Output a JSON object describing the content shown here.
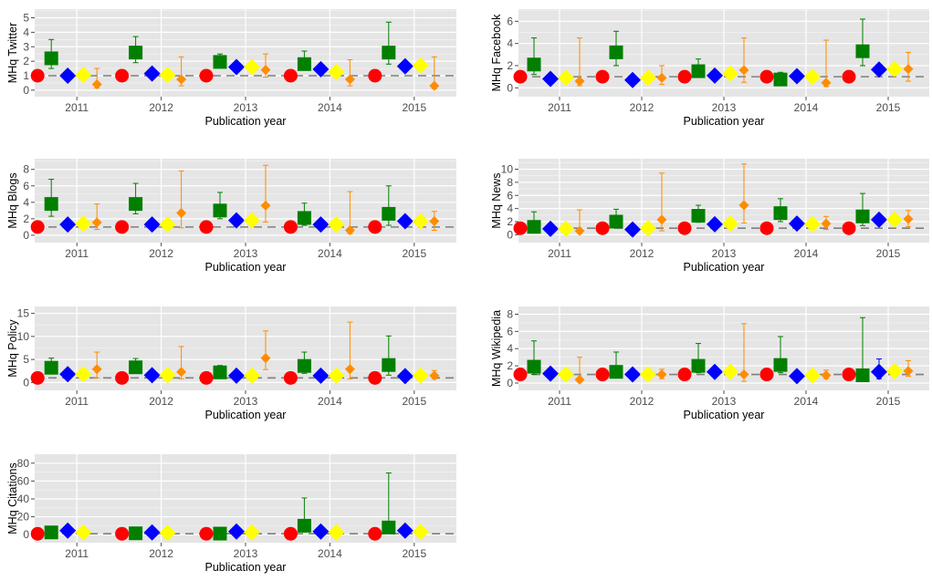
{
  "colors": {
    "panel_bg": "#e5e5e5",
    "grid": "#ffffff",
    "reference_line": "#7f7f7f",
    "tick_text": "#4d4d4d",
    "series": [
      "#ff0000",
      "#007f00",
      "#0000ff",
      "#ffff00",
      "#ff8c00"
    ]
  },
  "chart_data": [
    {
      "type": "scatter",
      "ylabel": "MHq Twitter",
      "xlabel": "Publication year",
      "categories": [
        "2011",
        "2012",
        "2013",
        "2014",
        "2015"
      ],
      "ylim": [
        -0.45,
        5.6
      ],
      "yticks": [
        "0",
        "1",
        "2",
        "3",
        "4",
        "5"
      ],
      "reference_line": 1,
      "series": [
        {
          "marker": "circle",
          "color": "#ff0000",
          "values": [
            1,
            1,
            1,
            1,
            1
          ]
        },
        {
          "marker": "square",
          "color": "#007f00",
          "values": [
            2.2,
            2.6,
            1.95,
            1.8,
            2.6
          ],
          "ci_low": [
            1.5,
            1.9,
            1.6,
            1.4,
            1.8
          ],
          "ci_high": [
            3.5,
            3.7,
            2.5,
            2.7,
            4.7
          ]
        },
        {
          "marker": "diamond",
          "color": "#0000ff",
          "values": [
            1,
            1.15,
            1.6,
            1.45,
            1.65
          ]
        },
        {
          "marker": "diamond",
          "color": "#ffff00",
          "values": [
            1.05,
            1.05,
            1.6,
            1.25,
            1.7
          ]
        },
        {
          "marker": "diamond",
          "color": "#ff8c00",
          "values": [
            0.4,
            0.75,
            1.4,
            0.75,
            0.3
          ],
          "ci_low": [
            0.15,
            0.3,
            0.9,
            0.3,
            0.1
          ],
          "ci_high": [
            1.5,
            2.3,
            2.5,
            2.1,
            2.3
          ]
        }
      ]
    },
    {
      "type": "scatter",
      "ylabel": "MHq Facebook",
      "xlabel": "Publication year",
      "categories": [
        "2011",
        "2012",
        "2013",
        "2014",
        "2015"
      ],
      "ylim": [
        -0.8,
        7.1
      ],
      "yticks": [
        "0",
        "2",
        "4",
        "6"
      ],
      "reference_line": 1,
      "series": [
        {
          "marker": "circle",
          "color": "#ff0000",
          "values": [
            1,
            1,
            1,
            1,
            1
          ]
        },
        {
          "marker": "square",
          "color": "#007f00",
          "values": [
            2.1,
            3.2,
            1.5,
            0.75,
            3.3
          ],
          "ci_low": [
            1.2,
            2.0,
            1.0,
            0.4,
            2.0
          ],
          "ci_high": [
            4.5,
            5.1,
            2.6,
            1.4,
            6.2
          ]
        },
        {
          "marker": "diamond",
          "color": "#0000ff",
          "values": [
            0.8,
            0.7,
            1.1,
            1.05,
            1.65
          ]
        },
        {
          "marker": "diamond",
          "color": "#ffff00",
          "values": [
            0.9,
            0.9,
            1.3,
            1.0,
            1.7
          ]
        },
        {
          "marker": "diamond",
          "color": "#ff8c00",
          "values": [
            0.6,
            0.9,
            1.6,
            0.45,
            1.7
          ],
          "ci_low": [
            0.2,
            0.3,
            0.5,
            0.1,
            0.6
          ],
          "ci_high": [
            4.5,
            2.0,
            4.5,
            4.3,
            3.2
          ]
        }
      ]
    },
    {
      "type": "scatter",
      "ylabel": "MHq Blogs",
      "xlabel": "Publication year",
      "categories": [
        "2011",
        "2012",
        "2013",
        "2014",
        "2015"
      ],
      "ylim": [
        -0.9,
        9.3
      ],
      "yticks": [
        "0",
        "2",
        "4",
        "6",
        "8"
      ],
      "reference_line": 1,
      "series": [
        {
          "marker": "circle",
          "color": "#ff0000",
          "values": [
            1,
            1,
            1,
            1,
            1
          ]
        },
        {
          "marker": "square",
          "color": "#007f00",
          "values": [
            3.8,
            3.8,
            3.0,
            2.1,
            2.6
          ],
          "ci_low": [
            2.3,
            2.6,
            2.0,
            1.2,
            1.2
          ],
          "ci_high": [
            6.8,
            6.3,
            5.2,
            3.9,
            6.0
          ]
        },
        {
          "marker": "diamond",
          "color": "#0000ff",
          "values": [
            1.3,
            1.3,
            1.8,
            1.3,
            1.7
          ]
        },
        {
          "marker": "diamond",
          "color": "#ffff00",
          "values": [
            1.4,
            1.3,
            1.8,
            1.3,
            1.7
          ]
        },
        {
          "marker": "diamond",
          "color": "#ff8c00",
          "values": [
            1.55,
            2.7,
            3.6,
            0.6,
            1.7
          ],
          "ci_low": [
            0.7,
            0.9,
            1.6,
            0.2,
            0.6
          ],
          "ci_high": [
            3.8,
            7.8,
            8.5,
            5.3,
            2.9
          ]
        }
      ]
    },
    {
      "type": "scatter",
      "ylabel": "MHq News",
      "xlabel": "Publication year",
      "categories": [
        "2011",
        "2012",
        "2013",
        "2014",
        "2015"
      ],
      "ylim": [
        -1.2,
        11.6
      ],
      "yticks": [
        "0",
        "2",
        "4",
        "6",
        "8",
        "10"
      ],
      "reference_line": 1,
      "series": [
        {
          "marker": "circle",
          "color": "#ff0000",
          "values": [
            1,
            1,
            1,
            1,
            1
          ]
        },
        {
          "marker": "square",
          "color": "#007f00",
          "values": [
            1.2,
            2.0,
            2.9,
            3.3,
            2.8
          ],
          "ci_low": [
            0.6,
            1.2,
            1.9,
            2.0,
            1.4
          ],
          "ci_high": [
            3.5,
            3.9,
            4.5,
            5.5,
            6.3
          ]
        },
        {
          "marker": "diamond",
          "color": "#0000ff",
          "values": [
            0.9,
            0.8,
            1.6,
            1.7,
            2.3
          ]
        },
        {
          "marker": "diamond",
          "color": "#ffff00",
          "values": [
            0.9,
            1.0,
            1.7,
            1.6,
            2.3
          ]
        },
        {
          "marker": "diamond",
          "color": "#ff8c00",
          "values": [
            0.6,
            2.3,
            4.5,
            1.7,
            2.4
          ],
          "ci_low": [
            0.2,
            0.6,
            1.8,
            0.8,
            1.2
          ],
          "ci_high": [
            3.8,
            9.4,
            10.8,
            2.8,
            3.7
          ]
        }
      ]
    },
    {
      "type": "scatter",
      "ylabel": "MHq Policy",
      "xlabel": "Publication year",
      "categories": [
        "2011",
        "2012",
        "2013",
        "2014",
        "2015"
      ],
      "ylim": [
        -1.7,
        16.5
      ],
      "yticks": [
        "0",
        "5",
        "10",
        "15"
      ],
      "reference_line": 1,
      "series": [
        {
          "marker": "circle",
          "color": "#ff0000",
          "values": [
            1,
            1,
            1,
            1,
            1
          ]
        },
        {
          "marker": "square",
          "color": "#007f00",
          "values": [
            3.2,
            3.3,
            2.2,
            3.6,
            3.8
          ],
          "ci_low": [
            2.0,
            2.2,
            1.3,
            2.0,
            1.6
          ],
          "ci_high": [
            5.3,
            5.2,
            3.7,
            6.6,
            10.1
          ]
        },
        {
          "marker": "diamond",
          "color": "#0000ff",
          "values": [
            1.8,
            1.6,
            1.5,
            1.5,
            1.4
          ]
        },
        {
          "marker": "diamond",
          "color": "#ffff00",
          "values": [
            1.8,
            1.6,
            1.5,
            1.5,
            1.5
          ]
        },
        {
          "marker": "diamond",
          "color": "#ff8c00",
          "values": [
            2.9,
            2.3,
            5.3,
            2.9,
            1.5
          ],
          "ci_low": [
            1.0,
            0.8,
            2.8,
            0.8,
            0.8
          ],
          "ci_high": [
            6.6,
            7.8,
            11.2,
            13.1,
            2.6
          ]
        }
      ]
    },
    {
      "type": "scatter",
      "ylabel": "MHq Wikipedia",
      "xlabel": "Publication year",
      "categories": [
        "2011",
        "2012",
        "2013",
        "2014",
        "2015"
      ],
      "ylim": [
        -0.85,
        8.9
      ],
      "yticks": [
        "0",
        "2",
        "4",
        "6",
        "8"
      ],
      "reference_line": 1,
      "series": [
        {
          "marker": "circle",
          "color": "#ff0000",
          "values": [
            1,
            1,
            1,
            1,
            1
          ]
        },
        {
          "marker": "square",
          "color": "#007f00",
          "values": [
            1.9,
            1.3,
            2.0,
            2.1,
            0.9
          ],
          "ci_low": [
            1.0,
            0.7,
            1.2,
            1.2,
            0.3
          ],
          "ci_high": [
            4.9,
            3.6,
            4.6,
            5.4,
            7.6
          ]
        },
        {
          "marker": "diamond",
          "color": "#0000ff",
          "values": [
            1.1,
            1.0,
            1.3,
            0.8,
            1.3
          ],
          "ci_low": [
            null,
            null,
            null,
            null,
            0.5
          ],
          "ci_high": [
            null,
            null,
            null,
            null,
            2.8
          ]
        },
        {
          "marker": "diamond",
          "color": "#ffff00",
          "values": [
            1.0,
            1.0,
            1.3,
            0.9,
            1.4
          ]
        },
        {
          "marker": "diamond",
          "color": "#ff8c00",
          "values": [
            0.4,
            1.0,
            1.0,
            0.9,
            1.4
          ],
          "ci_low": [
            0.1,
            0.5,
            0.2,
            0.5,
            0.8
          ],
          "ci_high": [
            3.0,
            1.6,
            6.9,
            1.5,
            2.6
          ]
        }
      ]
    },
    {
      "type": "scatter",
      "ylabel": "MHq Citations",
      "xlabel": "Publication year",
      "categories": [
        "2011",
        "2012",
        "2013",
        "2014",
        "2015"
      ],
      "ylim": [
        -9,
        90
      ],
      "yticks": [
        "0",
        "20",
        "40",
        "60",
        "80"
      ],
      "reference_line": 1,
      "series": [
        {
          "marker": "circle",
          "color": "#ff0000",
          "values": [
            1,
            1,
            1,
            1,
            1
          ]
        },
        {
          "marker": "square",
          "color": "#007f00",
          "values": [
            2.5,
            1.5,
            1.2,
            10.0,
            8.0
          ],
          "ci_low": [
            0.8,
            0.5,
            0.3,
            3.0,
            1.5
          ],
          "ci_high": [
            5.0,
            3.0,
            3.5,
            41.0,
            69.0
          ]
        },
        {
          "marker": "diamond",
          "color": "#0000ff",
          "values": [
            4.5,
            2.5,
            3.5,
            3.5,
            4.5
          ]
        },
        {
          "marker": "diamond",
          "color": "#ffff00",
          "values": [
            2.5,
            2.0,
            2.5,
            2.5,
            3.0
          ]
        }
      ]
    }
  ]
}
